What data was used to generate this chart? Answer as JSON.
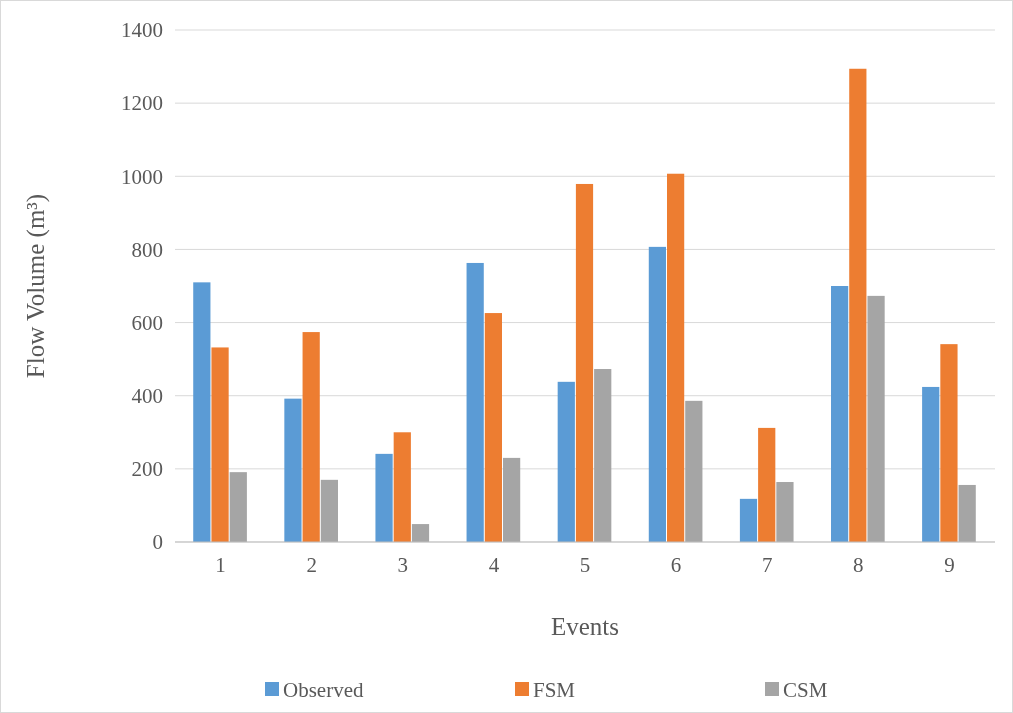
{
  "chart_data": {
    "type": "bar",
    "xlabel": "Events",
    "ylabel": "Flow Volume (m³)",
    "categories": [
      "1",
      "2",
      "3",
      "4",
      "5",
      "6",
      "7",
      "8",
      "9"
    ],
    "series": [
      {
        "name": "Observed",
        "color": "#5b9bd5",
        "values": [
          710,
          392,
          241,
          763,
          438,
          807,
          118,
          700,
          424
        ]
      },
      {
        "name": "FSM",
        "color": "#ed7d31",
        "values": [
          532,
          574,
          300,
          626,
          979,
          1007,
          312,
          1294,
          541
        ]
      },
      {
        "name": "CSM",
        "color": "#a5a5a5",
        "values": [
          191,
          170,
          49,
          230,
          473,
          386,
          164,
          673,
          156
        ]
      }
    ],
    "ylim": [
      0,
      1400
    ],
    "yticks": [
      0,
      200,
      400,
      600,
      800,
      1000,
      1200,
      1400
    ],
    "grid": "y",
    "legend": "bottom"
  }
}
